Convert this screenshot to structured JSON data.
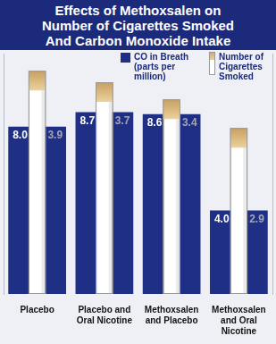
{
  "chart_data": {
    "type": "bar",
    "title": "Effects of Methoxsalen on Number of Cigarettes Smoked And Carbon Monoxide Intake",
    "categories": [
      "Placebo",
      "Placebo and Oral Nicotine",
      "Methoxsalen and Placebo",
      "Methoxsalen and Oral Nicotine"
    ],
    "series": [
      {
        "name": "CO in Breath (parts per million)",
        "color": "#1f2f86",
        "values": [
          8.0,
          8.7,
          8.6,
          4.0
        ],
        "value_labels": [
          "8.0",
          "8.7",
          "8.6",
          "4.0"
        ]
      },
      {
        "name": "Number of Cigarettes Smoked",
        "color": "#ffffff",
        "values": [
          3.9,
          3.7,
          3.4,
          2.9
        ],
        "axis": "y2"
      }
    ],
    "ylim": [
      0,
      11.5
    ],
    "y2lim": [
      0,
      4.2
    ],
    "legend": "top-right",
    "data_labels": true,
    "tick_labels": "x",
    "grid": false
  }
}
